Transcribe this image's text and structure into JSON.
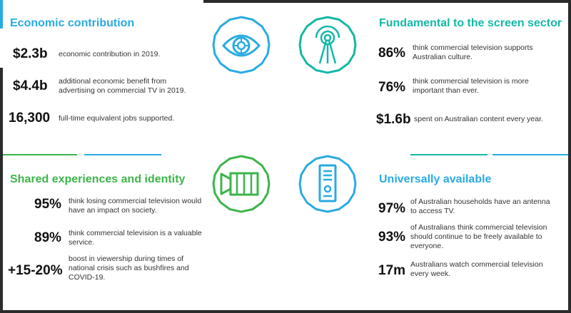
{
  "colors": {
    "blue": "#29abe2",
    "teal": "#14b8a6",
    "green": "#3cb54a",
    "frame": "#2b2b2b"
  },
  "economic": {
    "heading": "Economic contribution",
    "icon": "eye-icon",
    "stats": [
      {
        "value": "$2.3b",
        "text": "economic contribution in 2019."
      },
      {
        "value": "$4.4b",
        "text": "additional economic benefit from advertising on commercial TV in 2019."
      },
      {
        "value": "16,300",
        "text": "full-time equivalent jobs supported."
      }
    ]
  },
  "screen": {
    "heading": "Fundamental to the screen sector",
    "icon": "broadcast-tower-icon",
    "stats": [
      {
        "value": "86%",
        "text": "think commercial television supports Australian culture."
      },
      {
        "value": "76%",
        "text": "think commercial television is more important than ever."
      },
      {
        "value": "$1.6b",
        "text": "spent on Australian content every year."
      }
    ]
  },
  "shared": {
    "heading": "Shared experiences and identity",
    "icon": "video-camera-icon",
    "stats": [
      {
        "value": "95%",
        "text": "think losing commercial television would have an impact on society."
      },
      {
        "value": "89%",
        "text": "think commercial television is a valuable service."
      },
      {
        "value": "+15-20%",
        "text": "boost in viewership during times of national crisis such as bushfires and COVID-19."
      }
    ]
  },
  "available": {
    "heading": "Universally available",
    "icon": "tv-receiver-icon",
    "stats": [
      {
        "value": "97%",
        "text": "of Australian households have an antenna to access TV."
      },
      {
        "value": "93%",
        "text": "of Australians think commercial television should continue to be freely available to everyone."
      },
      {
        "value": "17m",
        "text": "Australians watch commercial television every week."
      }
    ]
  }
}
